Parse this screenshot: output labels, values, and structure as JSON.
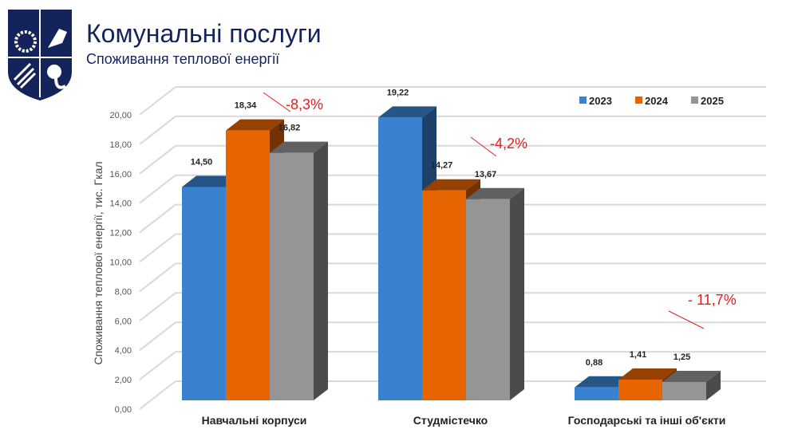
{
  "header": {
    "title": "Комунальні послуги",
    "subtitle": "Споживання теплової енергії"
  },
  "chart_data": {
    "type": "bar",
    "title": "",
    "ylabel": "Споживання теплової енергії, тис. Гкал",
    "xlabel": "",
    "ylim": [
      0,
      20
    ],
    "yticks": [
      "0,00",
      "2,00",
      "4,00",
      "6,00",
      "8,00",
      "10,00",
      "12,00",
      "14,00",
      "16,00",
      "18,00",
      "20,00"
    ],
    "categories": [
      "Навчальні корпуси",
      "Студмістечко",
      "Господарські та інші об'єкти"
    ],
    "series": [
      {
        "name": "2023",
        "color": "#3a82d0",
        "values": [
          14.5,
          19.22,
          0.88
        ],
        "labels": [
          "14,50",
          "19,22",
          "0,88"
        ]
      },
      {
        "name": "2024",
        "color": "#e86400",
        "values": [
          18.34,
          14.27,
          1.41
        ],
        "labels": [
          "18,34",
          "14,27",
          "1,41"
        ]
      },
      {
        "name": "2025",
        "color": "#959595",
        "values": [
          16.82,
          13.67,
          1.25
        ],
        "labels": [
          "16,82",
          "13,67",
          "1,25"
        ]
      }
    ],
    "annotations": [
      "-8,3%",
      "-4,2%",
      "- 11,7%"
    ],
    "legend": "top-right",
    "grid": true
  }
}
